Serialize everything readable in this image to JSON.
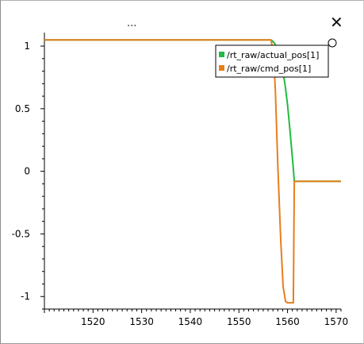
{
  "window": {
    "title": "...",
    "close_glyph": "✕"
  },
  "chart_data": {
    "type": "line",
    "xlim": [
      1510,
      1571
    ],
    "ylim": [
      -1.1,
      1.07
    ],
    "x_ticks": [
      1520,
      1530,
      1540,
      1550,
      1560,
      1570
    ],
    "y_ticks": [
      1,
      0.5,
      0,
      -0.5,
      -1
    ],
    "x_tick_labels": [
      "1520",
      "1530",
      "1540",
      "1550",
      "1560",
      "1570"
    ],
    "y_tick_labels": [
      "1",
      "0.5",
      "0",
      "-0.5",
      "-1"
    ],
    "legend_position": "top-right",
    "series": [
      {
        "name": "/rt_raw/actual_pos[1]",
        "color": "#22bb44",
        "x": [
          1510,
          1556.6,
          1557.2,
          1557.8,
          1558.4,
          1559.0,
          1559.5,
          1560.0,
          1560.5,
          1560.9,
          1561.2,
          1561.4,
          1571
        ],
        "y": [
          1.05,
          1.05,
          1.03,
          0.99,
          0.92,
          0.81,
          0.69,
          0.53,
          0.33,
          0.15,
          0.02,
          -0.08,
          -0.08
        ]
      },
      {
        "name": "/rt_raw/cmd_pos[1]",
        "color": "#e87e1c",
        "x": [
          1510,
          1556.6,
          1557.1,
          1557.5,
          1558.0,
          1558.6,
          1559.1,
          1559.6,
          1560.0,
          1560.4,
          1561.2,
          1561.4,
          1571
        ],
        "y": [
          1.05,
          1.05,
          0.95,
          0.65,
          0.05,
          -0.55,
          -0.92,
          -1.04,
          -1.05,
          -1.05,
          -1.05,
          -0.08,
          -0.08
        ]
      }
    ]
  }
}
